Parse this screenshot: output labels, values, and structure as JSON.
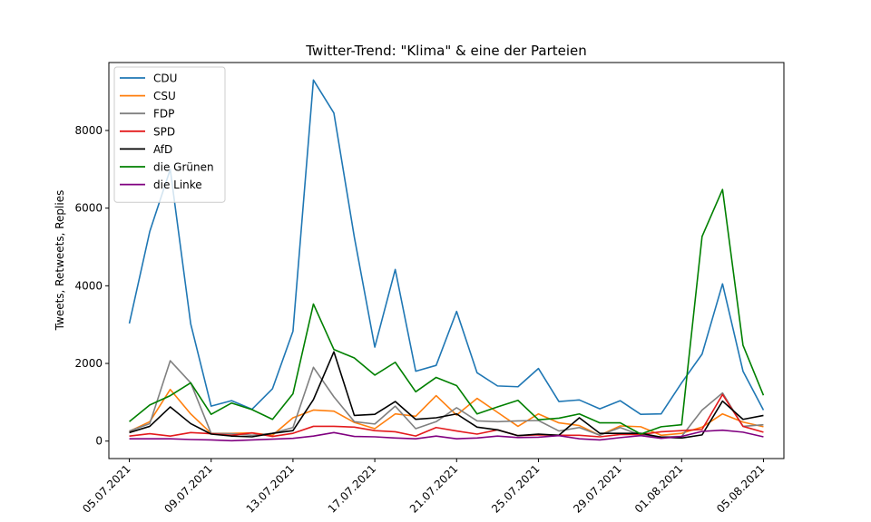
{
  "chart_data": {
    "type": "line",
    "title": "Twitter-Trend: \"Klima\" & eine der Parteien",
    "xlabel": "",
    "ylabel": "Tweets, Retweets, Replies",
    "x": [
      "2021-07-05",
      "2021-07-06",
      "2021-07-07",
      "2021-07-08",
      "2021-07-09",
      "2021-07-10",
      "2021-07-11",
      "2021-07-12",
      "2021-07-13",
      "2021-07-14",
      "2021-07-15",
      "2021-07-16",
      "2021-07-17",
      "2021-07-18",
      "2021-07-19",
      "2021-07-20",
      "2021-07-21",
      "2021-07-22",
      "2021-07-23",
      "2021-07-24",
      "2021-07-25",
      "2021-07-26",
      "2021-07-27",
      "2021-07-28",
      "2021-07-29",
      "2021-07-30",
      "2021-07-31",
      "2021-08-01",
      "2021-08-02",
      "2021-08-03",
      "2021-08-04",
      "2021-08-05"
    ],
    "xticks": [
      "2021-07-05",
      "2021-07-09",
      "2021-07-13",
      "2021-07-17",
      "2021-07-21",
      "2021-07-25",
      "2021-07-29",
      "2021-08-01",
      "2021-08-05"
    ],
    "xtick_labels": [
      "05.07.2021",
      "09.07.2021",
      "13.07.2021",
      "17.07.2021",
      "21.07.2021",
      "25.07.2021",
      "29.07.2021",
      "01.08.2021",
      "05.08.2021"
    ],
    "xlim": [
      "2021-07-04",
      "2021-08-06"
    ],
    "ylim": [
      -450,
      9750
    ],
    "yticks": [
      0,
      2000,
      4000,
      6000,
      8000
    ],
    "grid": false,
    "legend_position": "top-left",
    "series": [
      {
        "name": "CDU",
        "color": "#1f77b4",
        "values": [
          3030,
          5400,
          7000,
          3020,
          900,
          1040,
          820,
          1350,
          2830,
          9300,
          8450,
          5250,
          2420,
          4420,
          1800,
          1950,
          3340,
          1760,
          1420,
          1400,
          1870,
          1020,
          1060,
          830,
          1040,
          690,
          700,
          1500,
          2240,
          4050,
          1800,
          800
        ]
      },
      {
        "name": "CSU",
        "color": "#ff7f0e",
        "values": [
          250,
          500,
          1330,
          700,
          200,
          200,
          210,
          150,
          600,
          800,
          770,
          480,
          320,
          700,
          640,
          1170,
          670,
          1100,
          740,
          380,
          700,
          470,
          400,
          150,
          390,
          370,
          150,
          200,
          360,
          700,
          490,
          370
        ]
      },
      {
        "name": "FDP",
        "color": "#808080",
        "values": [
          260,
          450,
          2070,
          1500,
          200,
          190,
          150,
          200,
          350,
          1900,
          1140,
          500,
          440,
          900,
          320,
          500,
          860,
          520,
          500,
          520,
          530,
          260,
          350,
          150,
          350,
          150,
          110,
          120,
          800,
          1240,
          380,
          420
        ]
      },
      {
        "name": "SPD",
        "color": "#e31a1c",
        "values": [
          130,
          190,
          130,
          220,
          190,
          150,
          210,
          120,
          200,
          380,
          380,
          360,
          270,
          240,
          130,
          350,
          260,
          180,
          290,
          140,
          160,
          150,
          150,
          110,
          170,
          170,
          240,
          270,
          300,
          1200,
          380,
          230
        ]
      },
      {
        "name": "AfD",
        "color": "#000000",
        "values": [
          220,
          380,
          880,
          450,
          180,
          130,
          110,
          200,
          270,
          1070,
          2300,
          660,
          690,
          1020,
          560,
          600,
          700,
          360,
          290,
          140,
          180,
          150,
          600,
          200,
          200,
          200,
          100,
          80,
          160,
          1030,
          560,
          660
        ]
      },
      {
        "name": "die Grünen",
        "color": "#008000",
        "values": [
          500,
          930,
          1170,
          1500,
          690,
          980,
          810,
          560,
          1220,
          3530,
          2360,
          2140,
          1700,
          2030,
          1270,
          1640,
          1430,
          700,
          880,
          1050,
          550,
          590,
          700,
          470,
          470,
          180,
          370,
          420,
          5270,
          6480,
          2470,
          1180
        ]
      },
      {
        "name": "die Linke",
        "color": "#800080",
        "values": [
          60,
          60,
          60,
          40,
          30,
          10,
          30,
          50,
          70,
          130,
          220,
          120,
          110,
          80,
          60,
          130,
          60,
          80,
          130,
          90,
          100,
          140,
          60,
          30,
          90,
          140,
          70,
          120,
          250,
          280,
          230,
          110
        ]
      }
    ]
  }
}
